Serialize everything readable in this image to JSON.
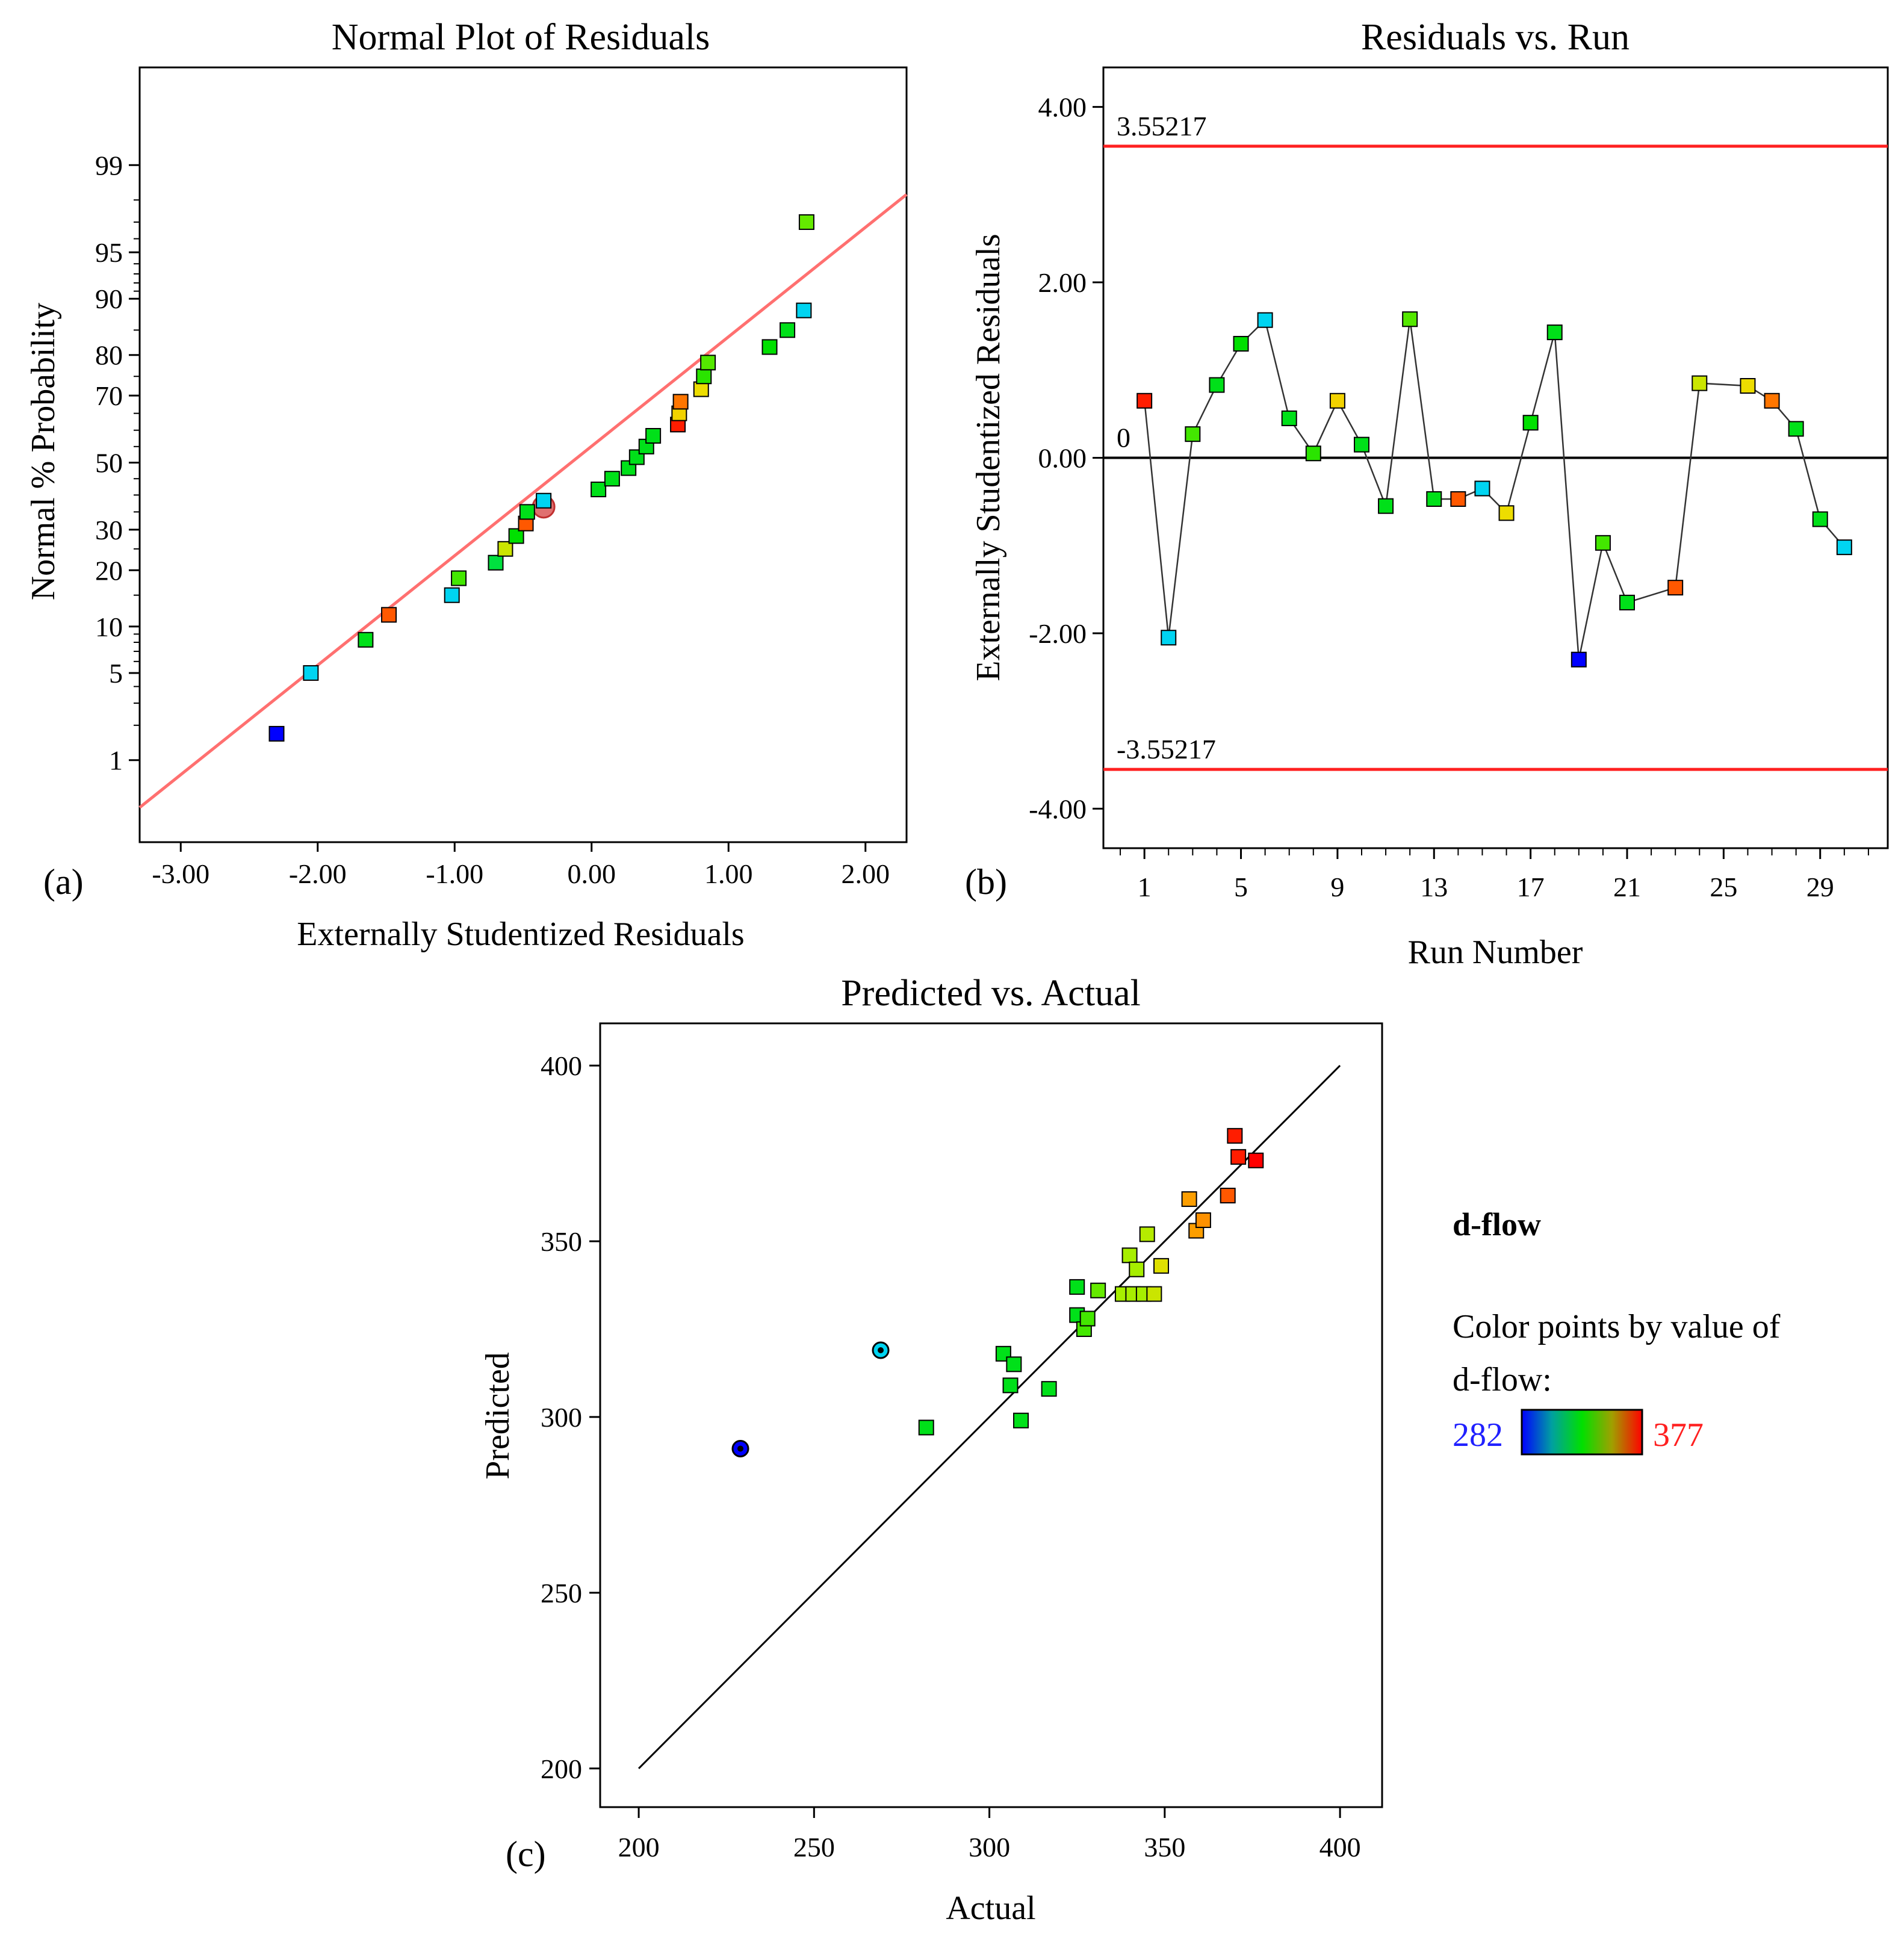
{
  "colors": {
    "low": "#0000ff",
    "mid": "#00e000",
    "high": "#ff0000",
    "fit_line_a": "#ff7070",
    "limit_line_b": "#ff2020",
    "zero_line_b": "#000000",
    "line_c": "#000000"
  },
  "chart_data": [
    {
      "type": "scatter",
      "title": "Normal Plot of Residuals",
      "panel_label": "(a)",
      "xlabel": "Externally Studentized Residuals",
      "ylabel": "Normal % Probability",
      "xlim": [
        -3.3,
        2.3
      ],
      "ylim_percent": [
        0.15,
        99.9
      ],
      "yscale": "normal-probability",
      "xticks": [
        "-3.00",
        "-2.00",
        "-1.00",
        "0.00",
        "1.00",
        "2.00"
      ],
      "xtick_values": [
        -3,
        -2,
        -1,
        0,
        1,
        2
      ],
      "yticks": [
        "1",
        "5",
        "10",
        "20",
        "30",
        "50",
        "70",
        "80",
        "90",
        "95",
        "99"
      ],
      "ytick_values": [
        1,
        5,
        10,
        20,
        30,
        50,
        70,
        80,
        90,
        95,
        99
      ],
      "fit_line": {
        "x": [
          -3.3,
          2.3
        ],
        "y": [
          0.35,
          98.2
        ]
      },
      "points": [
        {
          "x": -2.3,
          "y": 1.7,
          "value": 282
        },
        {
          "x": -2.05,
          "y": 5.0,
          "value": 300
        },
        {
          "x": -1.65,
          "y": 8.3,
          "value": 318
        },
        {
          "x": -1.48,
          "y": 11.7,
          "value": 368
        },
        {
          "x": -1.02,
          "y": 15.0,
          "value": 300
        },
        {
          "x": -0.97,
          "y": 18.3,
          "value": 328
        },
        {
          "x": -0.7,
          "y": 21.7,
          "value": 315
        },
        {
          "x": -0.63,
          "y": 25.0,
          "value": 345
        },
        {
          "x": -0.55,
          "y": 28.3,
          "value": 320
        },
        {
          "x": -0.48,
          "y": 31.7,
          "value": 368
        },
        {
          "x": -0.47,
          "y": 35.0,
          "value": 318
        },
        {
          "x": -0.35,
          "y": 38.3,
          "value": 300
        },
        {
          "x": 0.05,
          "y": 41.7,
          "value": 318
        },
        {
          "x": 0.15,
          "y": 45.0,
          "value": 318
        },
        {
          "x": 0.27,
          "y": 48.3,
          "value": 318
        },
        {
          "x": 0.33,
          "y": 51.7,
          "value": 318
        },
        {
          "x": 0.4,
          "y": 55.0,
          "value": 318
        },
        {
          "x": 0.45,
          "y": 58.3,
          "value": 318
        },
        {
          "x": 0.63,
          "y": 61.7,
          "value": 374
        },
        {
          "x": 0.64,
          "y": 65.0,
          "value": 352
        },
        {
          "x": 0.65,
          "y": 68.3,
          "value": 365
        },
        {
          "x": 0.8,
          "y": 71.7,
          "value": 350
        },
        {
          "x": 0.82,
          "y": 75.0,
          "value": 325
        },
        {
          "x": 0.85,
          "y": 78.3,
          "value": 330
        },
        {
          "x": 1.3,
          "y": 81.7,
          "value": 320
        },
        {
          "x": 1.43,
          "y": 85.0,
          "value": 318
        },
        {
          "x": 1.55,
          "y": 88.3,
          "value": 300
        },
        {
          "x": 1.57,
          "y": 97.0,
          "value": 332
        }
      ],
      "marker_circle": {
        "x": -0.35,
        "y": 36.5
      }
    },
    {
      "type": "line",
      "title": "Residuals vs. Run",
      "panel_label": "(b)",
      "xlabel": "Run Number",
      "ylabel": "Externally Studentized Residuals",
      "xlim": [
        -0.7,
        31.8
      ],
      "ylim": [
        -4.45,
        4.45
      ],
      "xticks": [
        "1",
        "5",
        "9",
        "13",
        "17",
        "21",
        "25",
        "29"
      ],
      "xtick_values": [
        1,
        5,
        9,
        13,
        17,
        21,
        25,
        29
      ],
      "yticks": [
        "-4.00",
        "-2.00",
        "0.00",
        "2.00",
        "4.00"
      ],
      "ytick_values": [
        -4,
        -2,
        0,
        2,
        4
      ],
      "limits": [
        {
          "value": 3.55217,
          "label": "3.55217"
        },
        {
          "value": -3.55217,
          "label": "-3.55217"
        }
      ],
      "zero_line": {
        "value": 0,
        "label": "0"
      },
      "runs": [
        1,
        2,
        3,
        4,
        5,
        6,
        7,
        8,
        9,
        10,
        11,
        12,
        13,
        14,
        15,
        16,
        17,
        18,
        19,
        20,
        21,
        23,
        24,
        26,
        27,
        28,
        29,
        30
      ],
      "residuals": [
        0.65,
        -2.05,
        0.27,
        0.83,
        1.3,
        1.57,
        0.45,
        0.05,
        0.65,
        0.15,
        -0.55,
        1.58,
        -0.47,
        -0.47,
        -0.35,
        -0.63,
        0.4,
        1.43,
        -2.3,
        -0.97,
        -1.65,
        -1.48,
        0.85,
        0.82,
        0.65,
        0.33,
        -0.7,
        -1.02
      ],
      "values": [
        374,
        300,
        328,
        318,
        320,
        300,
        318,
        325,
        352,
        318,
        318,
        330,
        318,
        368,
        300,
        350,
        320,
        318,
        282,
        328,
        318,
        368,
        345,
        350,
        365,
        318,
        318,
        300
      ]
    },
    {
      "type": "scatter",
      "title": "Predicted vs. Actual",
      "panel_label": "(c)",
      "xlabel": "Actual",
      "ylabel": "Predicted",
      "xlim": [
        189,
        412
      ],
      "ylim": [
        189,
        412
      ],
      "xticks": [
        "200",
        "250",
        "300",
        "350",
        "400"
      ],
      "xtick_values": [
        200,
        250,
        300,
        350,
        400
      ],
      "yticks": [
        "200",
        "250",
        "300",
        "350",
        "400"
      ],
      "ytick_values": [
        200,
        250,
        300,
        350,
        400
      ],
      "diagonal": {
        "x": [
          200,
          400
        ],
        "y": [
          200,
          400
        ]
      },
      "points": [
        {
          "x": 282,
          "y": 297,
          "value": 318
        },
        {
          "x": 304,
          "y": 318,
          "value": 318
        },
        {
          "x": 306,
          "y": 309,
          "value": 318
        },
        {
          "x": 307,
          "y": 315,
          "value": 318
        },
        {
          "x": 309,
          "y": 299,
          "value": 318
        },
        {
          "x": 317,
          "y": 308,
          "value": 318
        },
        {
          "x": 325,
          "y": 337,
          "value": 318
        },
        {
          "x": 325,
          "y": 329,
          "value": 318
        },
        {
          "x": 327,
          "y": 325,
          "value": 328
        },
        {
          "x": 328,
          "y": 328,
          "value": 328
        },
        {
          "x": 331,
          "y": 336,
          "value": 332
        },
        {
          "x": 338,
          "y": 335,
          "value": 340
        },
        {
          "x": 340,
          "y": 346,
          "value": 340
        },
        {
          "x": 341,
          "y": 335,
          "value": 340
        },
        {
          "x": 342,
          "y": 342,
          "value": 340
        },
        {
          "x": 344,
          "y": 335,
          "value": 340
        },
        {
          "x": 345,
          "y": 352,
          "value": 342
        },
        {
          "x": 347,
          "y": 335,
          "value": 345
        },
        {
          "x": 349,
          "y": 343,
          "value": 348
        },
        {
          "x": 357,
          "y": 362,
          "value": 360
        },
        {
          "x": 359,
          "y": 353,
          "value": 360
        },
        {
          "x": 361,
          "y": 356,
          "value": 362
        },
        {
          "x": 368,
          "y": 363,
          "value": 368
        },
        {
          "x": 370,
          "y": 380,
          "value": 374
        },
        {
          "x": 371,
          "y": 374,
          "value": 374
        },
        {
          "x": 376,
          "y": 373,
          "value": 377
        }
      ],
      "circle_points": [
        {
          "x": 229,
          "y": 291,
          "value": 282
        },
        {
          "x": 269,
          "y": 319,
          "value": 300
        }
      ]
    }
  ],
  "legend": {
    "title": "d-flow",
    "line1": "Color points by value of",
    "line2": "d-flow:",
    "min_label": "282",
    "max_label": "377",
    "min": 282,
    "max": 377
  }
}
